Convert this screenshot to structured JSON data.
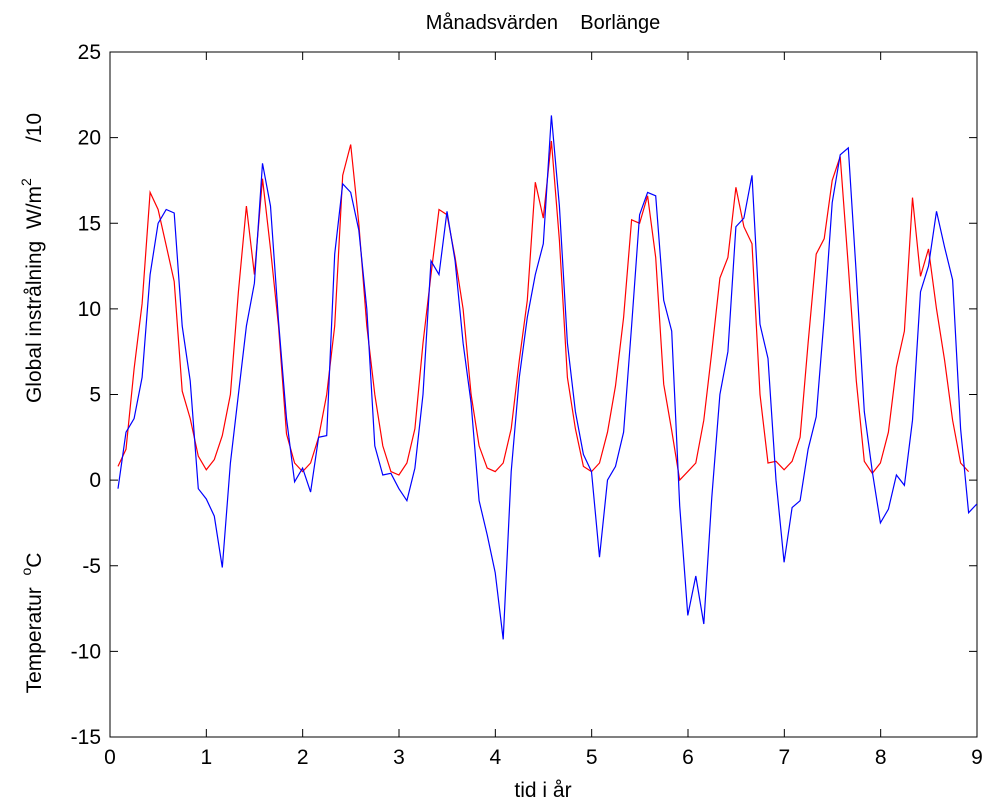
{
  "chart_data": {
    "type": "line",
    "title": "Månadsvärden    Borlänge",
    "xlabel": "tid i år",
    "ylabel_upper": {
      "main": "Global instrålning  W/m",
      "sup": "2",
      "suffix": "/10"
    },
    "ylabel_lower": {
      "main": "Temperatur  ",
      "sup": "o",
      "suffix": "C"
    },
    "xlim": [
      0,
      9
    ],
    "ylim": [
      -15,
      25
    ],
    "grid": false,
    "x_ticks": [
      0,
      1,
      2,
      3,
      4,
      5,
      6,
      7,
      8,
      9
    ],
    "x_tick_labels": [
      "0",
      "1",
      "2",
      "3",
      "4",
      "5",
      "6",
      "7",
      "8",
      "9"
    ],
    "y_ticks": [
      -15,
      -10,
      -5,
      0,
      5,
      10,
      15,
      20,
      25
    ],
    "y_tick_labels": [
      "-15",
      "-10",
      "-5",
      "0",
      "5",
      "10",
      "15",
      "20",
      "25"
    ],
    "series": [
      {
        "color": "#ff0000",
        "x_start": 0.0833,
        "x_step": 0.0833,
        "values": [
          0.8,
          1.8,
          6.5,
          10.3,
          16.8,
          15.8,
          13.7,
          11.6,
          5.2,
          3.6,
          1.4,
          0.6,
          1.2,
          2.6,
          5.0,
          11.0,
          16.0,
          12.0,
          17.6,
          13.5,
          9.0,
          2.7,
          1.0,
          0.5,
          1.0,
          2.5,
          5.0,
          9.0,
          17.8,
          19.6,
          15.0,
          9.0,
          5.0,
          2.0,
          0.5,
          0.3,
          1.0,
          3.0,
          8.0,
          12.0,
          15.8,
          15.5,
          13.0,
          10.0,
          5.0,
          2.0,
          0.7,
          0.5,
          1.0,
          3.0,
          7.0,
          10.5,
          17.4,
          15.3,
          19.8,
          14.0,
          6.0,
          3.0,
          0.8,
          0.5,
          1.0,
          2.8,
          5.5,
          9.5,
          15.2,
          15.0,
          16.6,
          13.0,
          5.6,
          2.9,
          0.0,
          0.5,
          1.0,
          3.5,
          7.5,
          11.8,
          13.0,
          17.1,
          14.8,
          13.8,
          5.0,
          1.0,
          1.1,
          0.6,
          1.1,
          2.5,
          8.0,
          13.2,
          14.1,
          17.5,
          18.9,
          12.5,
          5.8,
          1.1,
          0.4,
          1.0,
          2.8,
          6.6,
          8.7,
          16.5,
          11.9,
          13.5,
          10.0,
          7.0,
          3.5,
          1.0,
          0.5
        ]
      },
      {
        "color": "#0000ff",
        "x_start": 0.0833,
        "x_step": 0.0833,
        "values": [
          -0.5,
          2.8,
          3.6,
          6.0,
          12.0,
          15.0,
          15.8,
          15.6,
          9.0,
          5.8,
          -0.5,
          -1.1,
          -2.1,
          -5.1,
          1.0,
          5.0,
          9.0,
          11.5,
          18.5,
          16.0,
          9.3,
          3.6,
          -0.1,
          0.7,
          -0.7,
          2.5,
          2.6,
          13.2,
          17.3,
          16.8,
          14.6,
          10.0,
          2.0,
          0.3,
          0.4,
          -0.5,
          -1.2,
          0.7,
          5.0,
          12.8,
          12.0,
          15.7,
          12.8,
          8.0,
          4.5,
          -1.2,
          -3.2,
          -5.4,
          -9.3,
          0.5,
          6.0,
          9.5,
          12.0,
          13.8,
          21.3,
          16.0,
          8.0,
          4.0,
          1.5,
          0.5,
          -4.5,
          0.0,
          0.8,
          2.8,
          9.0,
          15.5,
          16.8,
          16.6,
          10.5,
          8.7,
          -1.5,
          -7.9,
          -5.6,
          -8.4,
          -1.0,
          5.0,
          7.5,
          14.8,
          15.3,
          17.8,
          9.1,
          7.1,
          0.0,
          -4.8,
          -1.6,
          -1.2,
          1.8,
          3.7,
          9.5,
          16.2,
          19.0,
          19.4,
          12.0,
          4.0,
          0.5,
          -2.5,
          -1.7,
          0.3,
          -0.3,
          3.5,
          11.0,
          12.5,
          15.7,
          13.6,
          11.7,
          3.0,
          -1.9,
          -1.4
        ]
      }
    ]
  }
}
